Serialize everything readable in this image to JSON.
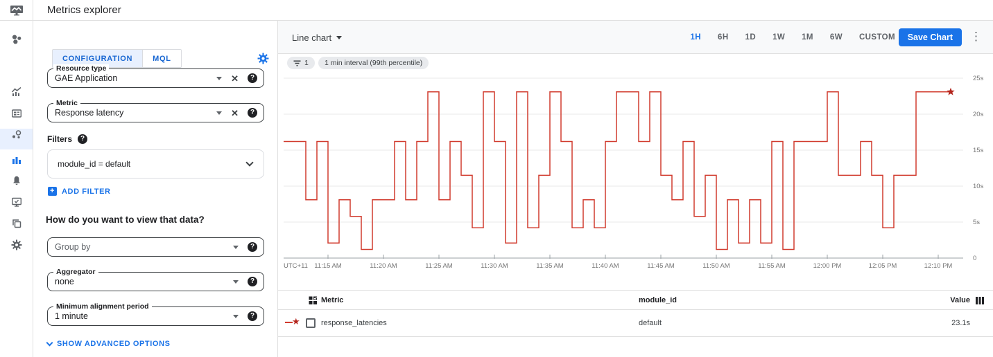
{
  "app": {
    "title": "Metrics explorer"
  },
  "sidebar": {
    "active": "metrics-explorer",
    "icons": [
      "monitoring-overview",
      "metrics",
      "dashboards",
      "services",
      "metrics-explorer",
      "alerting",
      "uptime-checks",
      "groups",
      "settings"
    ]
  },
  "config": {
    "tabs": {
      "configuration": "CONFIGURATION",
      "mql": "MQL",
      "active": "CONFIGURATION"
    },
    "resource_type": {
      "label": "Resource type",
      "value": "GAE Application"
    },
    "metric": {
      "label": "Metric",
      "value": "Response latency"
    },
    "filters": {
      "label": "Filters",
      "value": "module_id = default",
      "add_label": "ADD FILTER"
    },
    "view_heading": "How do you want to view that data?",
    "group_by": {
      "placeholder": "Group by"
    },
    "aggregator": {
      "label": "Aggregator",
      "value": "none"
    },
    "alignment": {
      "label": "Minimum alignment period",
      "value": "1 minute"
    },
    "advanced_label": "SHOW ADVANCED OPTIONS"
  },
  "toolbar": {
    "chart_type": "Line chart",
    "ranges": [
      "1H",
      "6H",
      "1D",
      "1W",
      "1M",
      "6W",
      "CUSTOM"
    ],
    "active_range": "1H",
    "save_label": "Save Chart"
  },
  "chips": {
    "filter_count": "1",
    "interval_label": "1 min interval (99th percentile)"
  },
  "chart_data": {
    "type": "line",
    "style": "step-after",
    "title": "",
    "xlabel": "",
    "ylabel": "",
    "ylim": [
      0,
      25
    ],
    "grid": "horizontal",
    "y_ticks": [
      25,
      20,
      15,
      10,
      5,
      0
    ],
    "y_tick_labels": [
      "25s",
      "20s",
      "15s",
      "10s",
      "5s",
      "0"
    ],
    "x_tick_labels": [
      "UTC+11",
      "11:15 AM",
      "11:20 AM",
      "11:25 AM",
      "11:30 AM",
      "11:35 AM",
      "11:40 AM",
      "11:45 AM",
      "11:50 AM",
      "11:55 AM",
      "12:00 PM",
      "12:05 PM",
      "12:10 PM"
    ],
    "x_start": "11:11 AM",
    "x_interval_minutes": 1,
    "end_marker": "star",
    "series": [
      {
        "name": "response_latencies (99th percentile), module_id = default",
        "unit": "s",
        "values": [
          16.2,
          16.2,
          8.1,
          16.2,
          2.1,
          8.1,
          5.8,
          1.2,
          8.1,
          8.1,
          16.2,
          8.1,
          16.2,
          23.1,
          8.1,
          16.2,
          11.5,
          4.2,
          23.1,
          16.2,
          2.1,
          23.1,
          4.2,
          11.5,
          23.1,
          16.2,
          4.2,
          8.1,
          4.2,
          16.2,
          23.1,
          23.1,
          16.2,
          23.1,
          11.5,
          8.1,
          16.2,
          5.8,
          11.5,
          1.2,
          8.1,
          2.1,
          8.1,
          2.1,
          16.2,
          1.2,
          16.2,
          16.2,
          16.2,
          23.1,
          11.5,
          11.5,
          16.2,
          11.5,
          4.2,
          11.5,
          11.5,
          23.1,
          23.1,
          23.1
        ]
      }
    ]
  },
  "table": {
    "columns": [
      "Metric",
      "module_id",
      "Value"
    ],
    "rows": [
      {
        "metric": "response_latencies",
        "module_id": "default",
        "value": "23.1s"
      }
    ]
  },
  "colors": {
    "accent": "#1a73e8",
    "tab_bg": "#e8f0fe",
    "line": "#d13b2e",
    "star": "#b3261e",
    "grid": "#e8e8e8",
    "axis": "#9aa0a6",
    "chip_bg": "#e8eaed"
  }
}
